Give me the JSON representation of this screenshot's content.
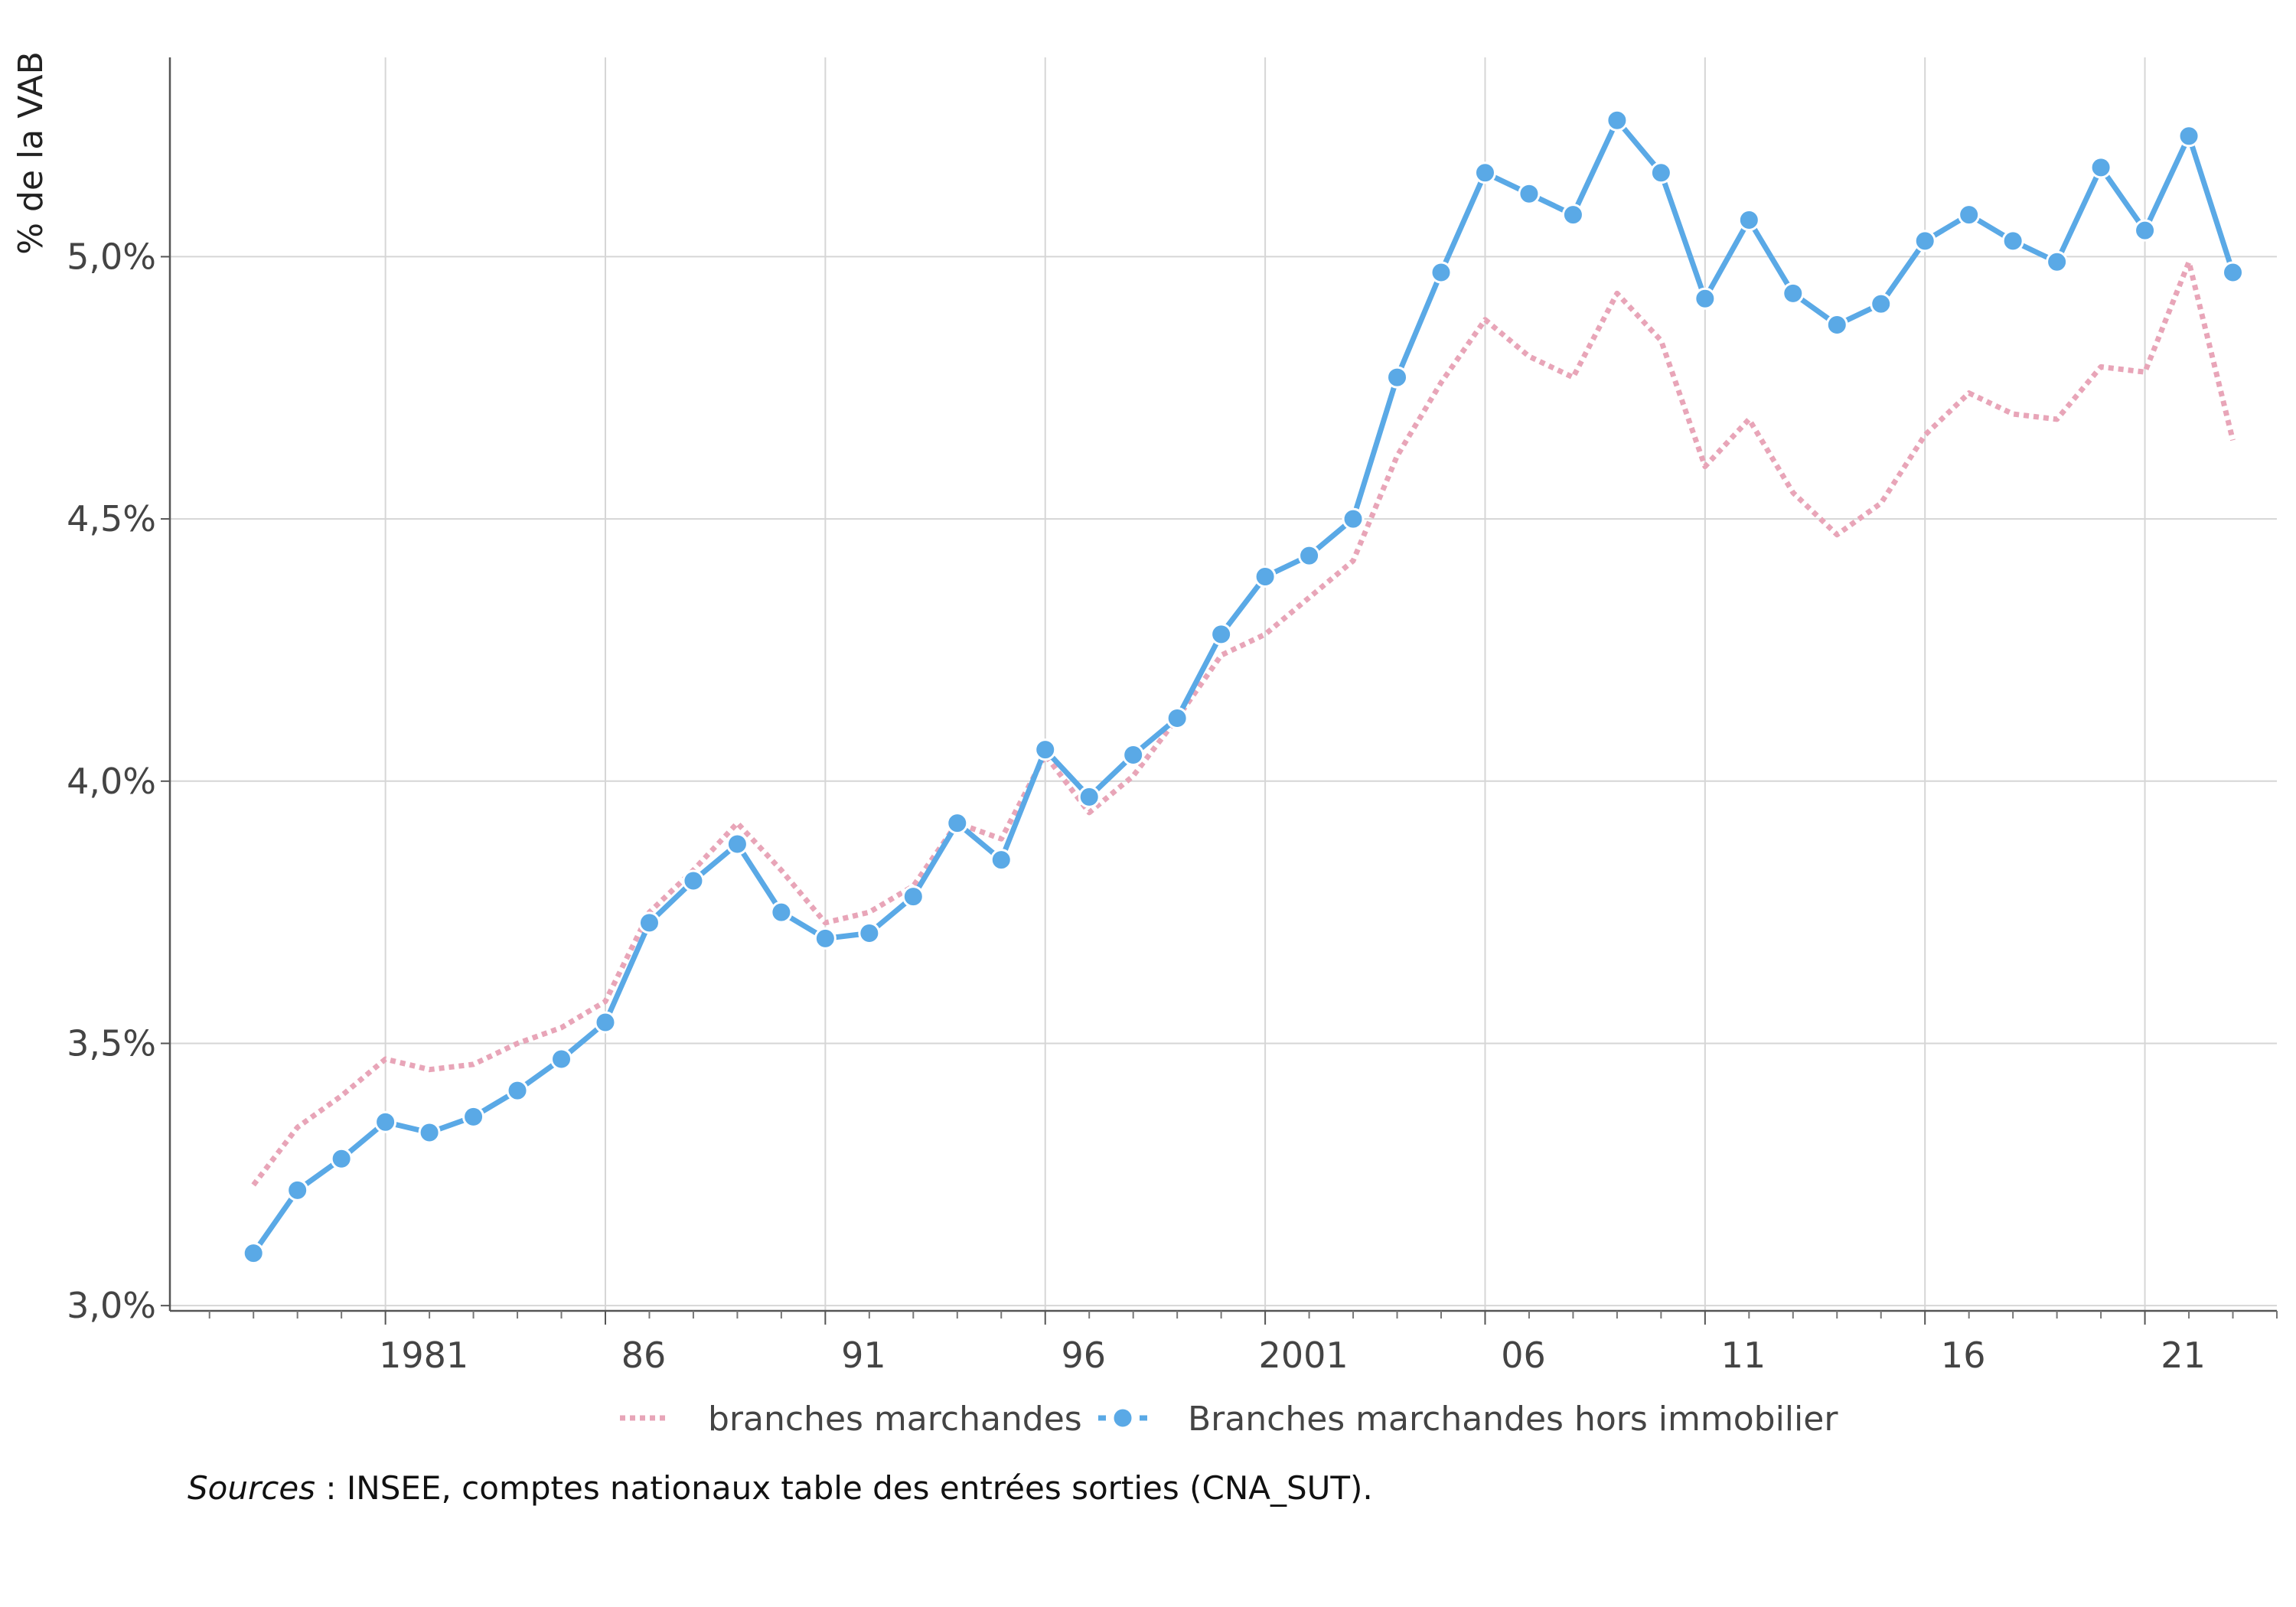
{
  "chart_data": {
    "type": "line",
    "ylabel": "% de la VAB",
    "xlabel": "",
    "ylim": [
      2.99,
      5.38
    ],
    "yticks": [
      3.0,
      3.5,
      4.0,
      4.5,
      5.0
    ],
    "ytick_labels": [
      "3,0%",
      "3,5%",
      "4,0%",
      "4,5%",
      "5,0%"
    ],
    "xtick_years": [
      1981,
      1986,
      1991,
      1996,
      2001,
      2006,
      2011,
      2016,
      2021
    ],
    "xtick_labels": [
      "1981",
      "86",
      "91",
      "96",
      "2001",
      "06",
      "11",
      "16",
      "21"
    ],
    "x": [
      1978,
      1979,
      1980,
      1981,
      1982,
      1983,
      1984,
      1985,
      1986,
      1987,
      1988,
      1989,
      1990,
      1991,
      1992,
      1993,
      1994,
      1995,
      1996,
      1997,
      1998,
      1999,
      2000,
      2001,
      2002,
      2003,
      2004,
      2005,
      2006,
      2007,
      2008,
      2009,
      2010,
      2011,
      2012,
      2013,
      2014,
      2015,
      2016,
      2017,
      2018,
      2019,
      2020,
      2021,
      2022,
      2023
    ],
    "grid": true,
    "legend_position": "bottom",
    "series": [
      {
        "name": "branches marchandes",
        "style": "dotted",
        "color": "#e8a5b8",
        "values": [
          3.23,
          3.34,
          3.4,
          3.47,
          3.45,
          3.46,
          3.5,
          3.53,
          3.58,
          3.75,
          3.83,
          3.92,
          3.83,
          3.73,
          3.75,
          3.8,
          3.92,
          3.89,
          4.05,
          3.94,
          4.01,
          4.12,
          4.24,
          4.28,
          4.35,
          4.42,
          4.62,
          4.76,
          4.88,
          4.81,
          4.77,
          4.93,
          4.84,
          4.6,
          4.69,
          4.55,
          4.47,
          4.53,
          4.66,
          4.74,
          4.7,
          4.69,
          4.79,
          4.78,
          4.99,
          4.65
        ]
      },
      {
        "name": "Branches marchandes hors immobilier",
        "style": "solid-markers",
        "color": "#5aa9e6",
        "values": [
          3.1,
          3.22,
          3.28,
          3.35,
          3.33,
          3.36,
          3.41,
          3.47,
          3.54,
          3.73,
          3.81,
          3.88,
          3.75,
          3.7,
          3.71,
          3.78,
          3.92,
          3.85,
          4.06,
          3.97,
          4.05,
          4.12,
          4.28,
          4.39,
          4.43,
          4.5,
          4.77,
          4.97,
          5.16,
          5.12,
          5.08,
          5.26,
          5.16,
          4.92,
          5.07,
          4.93,
          4.87,
          4.91,
          5.03,
          5.08,
          5.03,
          4.99,
          5.17,
          5.05,
          5.23,
          4.97
        ]
      }
    ]
  },
  "source": {
    "label": "Sources",
    "text": " : INSEE, comptes nationaux table des entrées sorties (CNA_SUT)."
  }
}
